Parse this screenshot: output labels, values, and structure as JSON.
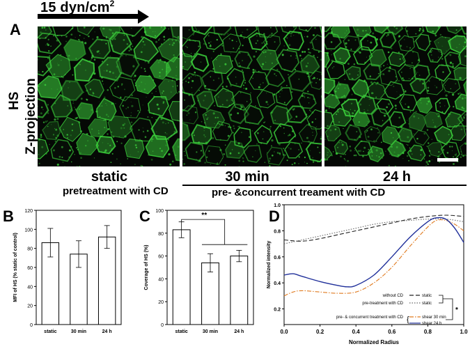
{
  "flow": {
    "label": "15 dyn/cm",
    "exponent": "2"
  },
  "panel_a": {
    "letter": "A",
    "row_label_line1": "HS",
    "row_label_line2": "Z-projection",
    "conditions": [
      "static",
      "30 min",
      "24 h"
    ],
    "group_labels": [
      "pretreatment with CD",
      "pre- &concurrent treament with CD"
    ]
  },
  "colors": {
    "stain": "#3cd23c",
    "background": "#050805",
    "curve_shear_24h": "#1f2f9a",
    "curve_shear_30min": "#e07a1f"
  },
  "chart_data": [
    {
      "panel": "B",
      "type": "bar",
      "categories": [
        "static",
        "30 min",
        "24 h"
      ],
      "values": [
        86,
        74,
        92
      ],
      "errors": [
        15,
        14,
        12
      ],
      "ylabel": "MFI of HS (% static of control)",
      "ylim": [
        0,
        120
      ],
      "yticks": [
        0,
        20,
        40,
        60,
        80,
        100,
        120
      ]
    },
    {
      "panel": "C",
      "type": "bar",
      "categories": [
        "static",
        "30 min",
        "24 h"
      ],
      "values": [
        83,
        54,
        60
      ],
      "errors": [
        7,
        8,
        5
      ],
      "ylabel": "Coverage of HS (%)",
      "ylim": [
        0,
        100
      ],
      "yticks": [
        0,
        20,
        40,
        60,
        80,
        100
      ],
      "significance": "**"
    },
    {
      "panel": "D",
      "type": "line",
      "xlabel": "Normalized Radius",
      "ylabel": "Normalized intensity",
      "xlim": [
        0,
        1.0
      ],
      "ylim": [
        0.08,
        1.0
      ],
      "xticks": [
        "0.0",
        "0.2",
        "0.4",
        "0.6",
        "0.8",
        "1.0"
      ],
      "yticks": [
        "0.2",
        "0.4",
        "0.6",
        "0.8",
        "1.0"
      ],
      "significance": "*",
      "legend": {
        "without_cd": "without CD",
        "pretreatment_cd": "pre-treatment with CD",
        "concurrent_cd": "pre- & concurrent treatment with CD",
        "static_1": "static",
        "static_2": "static",
        "shear_30": "shear 30 min",
        "shear_24": "shear 24 h"
      },
      "series": [
        {
          "name": "static",
          "group": "without CD",
          "style": "dashed",
          "color": "#222222",
          "x": [
            0.0,
            0.1,
            0.2,
            0.3,
            0.4,
            0.5,
            0.6,
            0.7,
            0.8,
            0.9,
            1.0
          ],
          "y": [
            0.73,
            0.72,
            0.74,
            0.77,
            0.8,
            0.83,
            0.86,
            0.89,
            0.91,
            0.92,
            0.91
          ]
        },
        {
          "name": "static",
          "group": "pre-treatment with CD",
          "style": "dotted",
          "color": "#666666",
          "x": [
            0.0,
            0.1,
            0.2,
            0.3,
            0.4,
            0.5,
            0.6,
            0.7,
            0.8,
            0.9,
            1.0
          ],
          "y": [
            0.7,
            0.73,
            0.76,
            0.79,
            0.82,
            0.85,
            0.87,
            0.88,
            0.89,
            0.89,
            0.87
          ]
        },
        {
          "name": "shear 30 min",
          "group": "pre- & concurrent treatment with CD",
          "style": "dashdot",
          "color": "#e07a1f",
          "x": [
            0.0,
            0.05,
            0.1,
            0.2,
            0.3,
            0.4,
            0.5,
            0.6,
            0.7,
            0.8,
            0.85,
            0.9,
            0.95,
            1.0
          ],
          "y": [
            0.3,
            0.33,
            0.34,
            0.33,
            0.32,
            0.33,
            0.4,
            0.52,
            0.68,
            0.83,
            0.88,
            0.88,
            0.85,
            0.8
          ]
        },
        {
          "name": "shear 24 h",
          "group": "pre- & concurrent treatment with CD",
          "style": "solid",
          "color": "#1f2f9a",
          "x": [
            0.0,
            0.05,
            0.1,
            0.2,
            0.3,
            0.35,
            0.4,
            0.5,
            0.6,
            0.7,
            0.8,
            0.85,
            0.9,
            0.95,
            1.0
          ],
          "y": [
            0.46,
            0.47,
            0.45,
            0.41,
            0.38,
            0.37,
            0.38,
            0.46,
            0.6,
            0.75,
            0.87,
            0.9,
            0.89,
            0.82,
            0.71
          ]
        }
      ]
    }
  ]
}
